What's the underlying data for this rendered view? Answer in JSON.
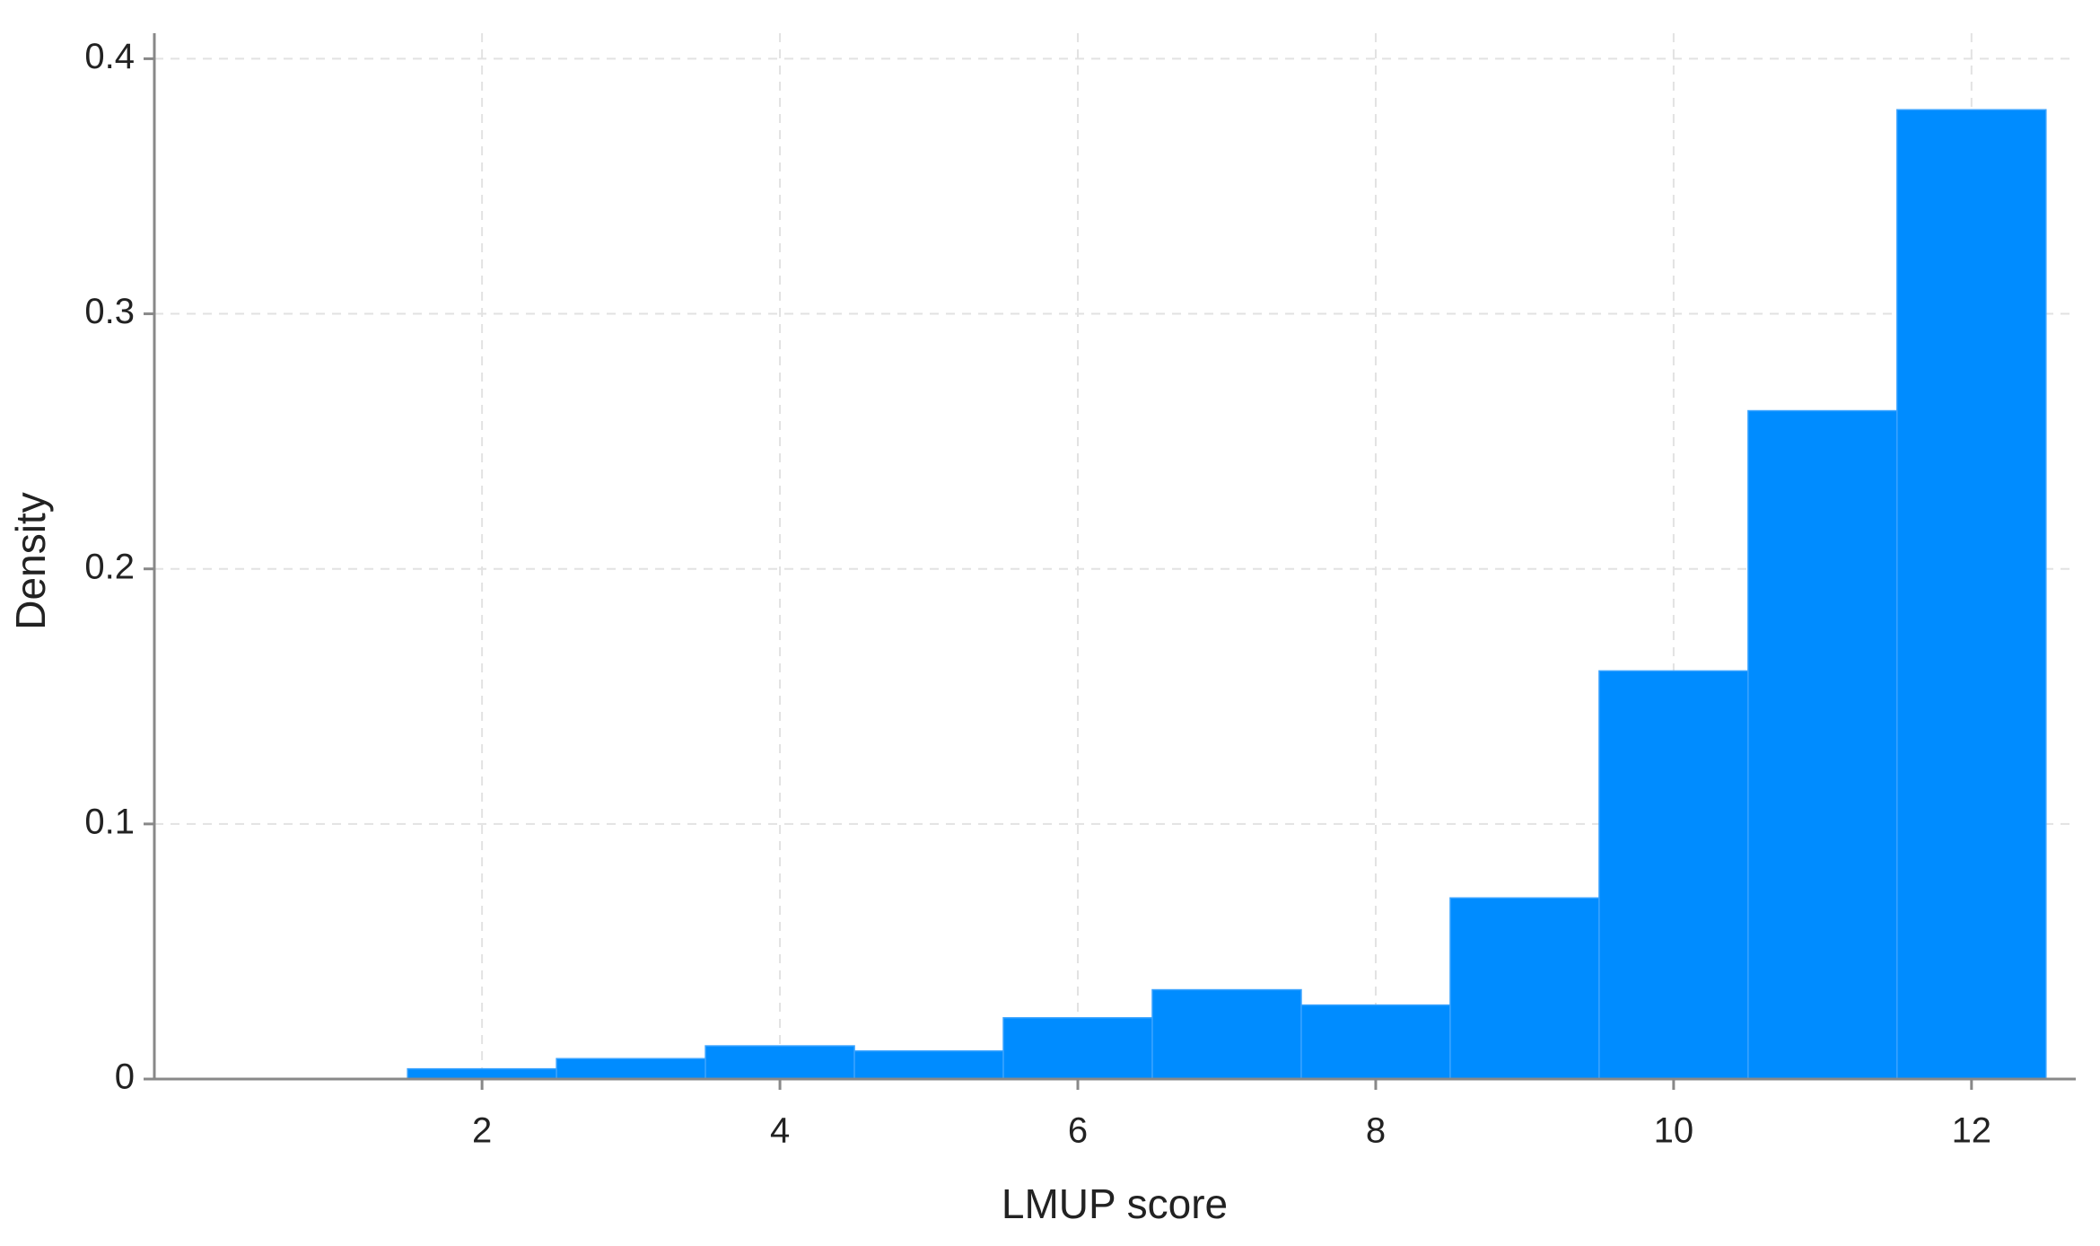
{
  "chart_data": {
    "type": "histogram",
    "x_label": "LMUP score",
    "y_label": "Density",
    "bins": [
      1.5,
      2.5,
      3.5,
      4.5,
      5.5,
      6.5,
      7.5,
      8.5,
      9.5,
      10.5,
      11.5,
      12.5
    ],
    "values": [
      0.004,
      0.008,
      0.013,
      0.011,
      0.024,
      0.035,
      0.029,
      0.071,
      0.16,
      0.262,
      0.38
    ],
    "color": "#008cff",
    "xlim": [
      -0.2,
      12.7
    ],
    "xticks": [
      2,
      4,
      6,
      8,
      10,
      12
    ],
    "ylim": [
      0,
      0.41
    ],
    "yticks": [
      0,
      0.1,
      0.2,
      0.3,
      0.4
    ],
    "grid": true
  }
}
